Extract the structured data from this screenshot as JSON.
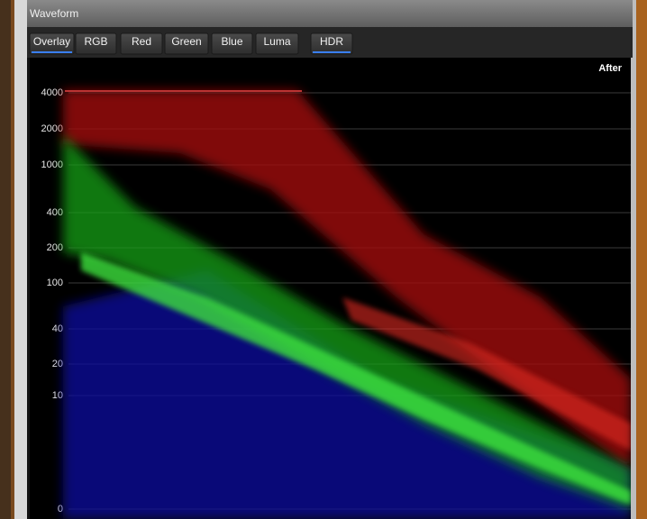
{
  "panel": {
    "title": "Waveform",
    "tabs": [
      "Overlay",
      "RGB",
      "Red",
      "Green",
      "Blue",
      "Luma",
      "HDR"
    ],
    "view_label": "After",
    "scale": [
      "4000",
      "2000",
      "1000",
      "400",
      "200",
      "100",
      "40",
      "20",
      "10",
      "0"
    ]
  }
}
